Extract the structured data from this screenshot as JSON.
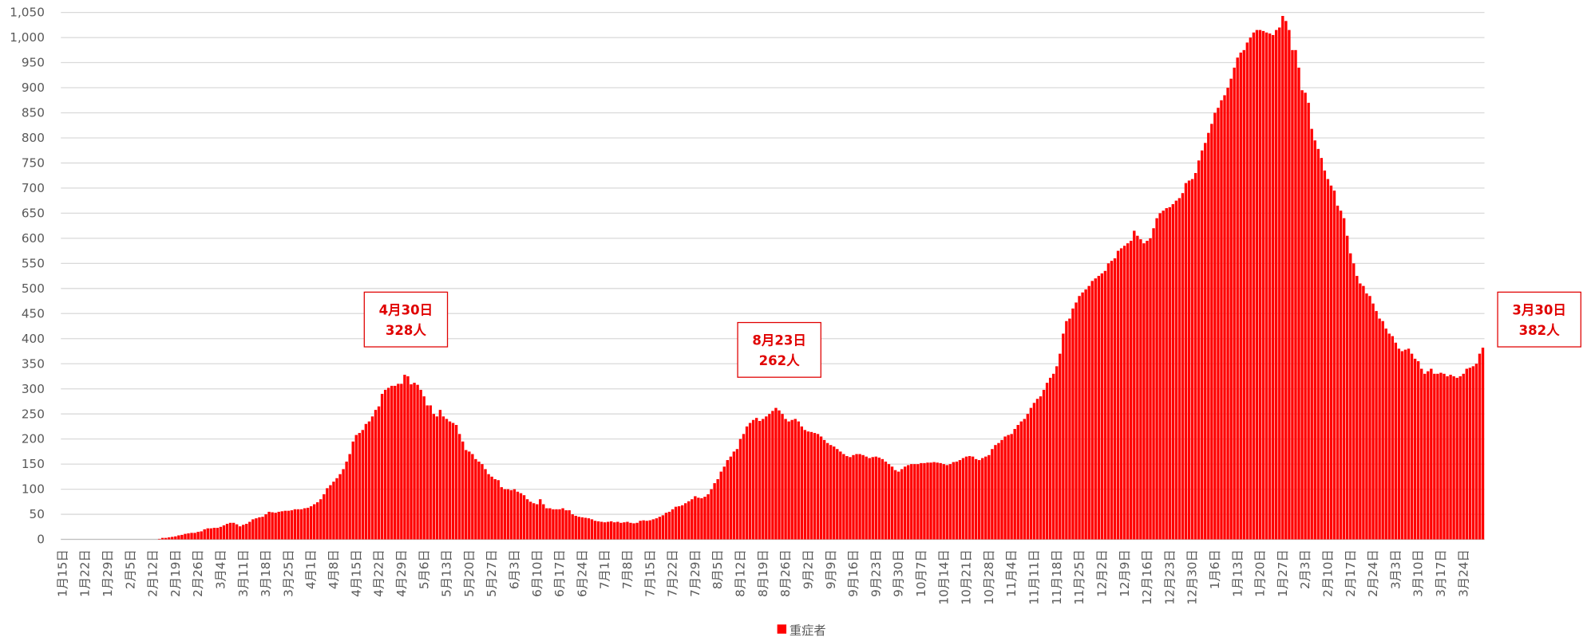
{
  "chart_data": {
    "type": "bar",
    "categories": [
      "1月15日",
      null,
      null,
      null,
      null,
      null,
      null,
      "1月22日",
      null,
      null,
      null,
      null,
      null,
      null,
      "1月29日",
      null,
      null,
      null,
      null,
      null,
      null,
      "2月5日",
      null,
      null,
      null,
      null,
      null,
      null,
      "2月12日",
      null,
      null,
      null,
      null,
      null,
      null,
      "2月19日",
      null,
      null,
      null,
      null,
      null,
      null,
      "2月26日",
      null,
      null,
      null,
      null,
      null,
      null,
      "3月4日",
      null,
      null,
      null,
      null,
      null,
      null,
      "3月11日",
      null,
      null,
      null,
      null,
      null,
      null,
      "3月18日",
      null,
      null,
      null,
      null,
      null,
      null,
      "3月25日",
      null,
      null,
      null,
      null,
      null,
      null,
      "4月1日",
      null,
      null,
      null,
      null,
      null,
      null,
      "4月8日",
      null,
      null,
      null,
      null,
      null,
      null,
      "4月15日",
      null,
      null,
      null,
      null,
      null,
      null,
      "4月22日",
      null,
      null,
      null,
      null,
      null,
      null,
      "4月29日",
      null,
      null,
      null,
      null,
      null,
      null,
      "5月6日",
      null,
      null,
      null,
      null,
      null,
      null,
      "5月13日",
      null,
      null,
      null,
      null,
      null,
      null,
      "5月20日",
      null,
      null,
      null,
      null,
      null,
      null,
      "5月27日",
      null,
      null,
      null,
      null,
      null,
      null,
      "6月3日",
      null,
      null,
      null,
      null,
      null,
      null,
      "6月10日",
      null,
      null,
      null,
      null,
      null,
      null,
      "6月17日",
      null,
      null,
      null,
      null,
      null,
      null,
      "6月24日",
      null,
      null,
      null,
      null,
      null,
      null,
      "7月1日",
      null,
      null,
      null,
      null,
      null,
      null,
      "7月8日",
      null,
      null,
      null,
      null,
      null,
      null,
      "7月15日",
      null,
      null,
      null,
      null,
      null,
      null,
      "7月22日",
      null,
      null,
      null,
      null,
      null,
      null,
      "7月29日",
      null,
      null,
      null,
      null,
      null,
      null,
      "8月5日",
      null,
      null,
      null,
      null,
      null,
      null,
      "8月12日",
      null,
      null,
      null,
      null,
      null,
      null,
      "8月19日",
      null,
      null,
      null,
      null,
      null,
      null,
      "8月26日",
      null,
      null,
      null,
      null,
      null,
      null,
      "9月2日",
      null,
      null,
      null,
      null,
      null,
      null,
      "9月9日",
      null,
      null,
      null,
      null,
      null,
      null,
      "9月16日",
      null,
      null,
      null,
      null,
      null,
      null,
      "9月23日",
      null,
      null,
      null,
      null,
      null,
      null,
      "9月30日",
      null,
      null,
      null,
      null,
      null,
      null,
      "10月7日",
      null,
      null,
      null,
      null,
      null,
      null,
      "10月14日",
      null,
      null,
      null,
      null,
      null,
      null,
      "10月21日",
      null,
      null,
      null,
      null,
      null,
      null,
      "10月28日",
      null,
      null,
      null,
      null,
      null,
      null,
      "11月4日",
      null,
      null,
      null,
      null,
      null,
      null,
      "11月11日",
      null,
      null,
      null,
      null,
      null,
      null,
      "11月18日",
      null,
      null,
      null,
      null,
      null,
      null,
      "11月25日",
      null,
      null,
      null,
      null,
      null,
      null,
      "12月2日",
      null,
      null,
      null,
      null,
      null,
      null,
      "12月9日",
      null,
      null,
      null,
      null,
      null,
      null,
      "12月16日",
      null,
      null,
      null,
      null,
      null,
      null,
      "12月23日",
      null,
      null,
      null,
      null,
      null,
      null,
      "12月30日",
      null,
      null,
      null,
      null,
      null,
      null,
      "1月6日",
      null,
      null,
      null,
      null,
      null,
      null,
      "1月13日",
      null,
      null,
      null,
      null,
      null,
      null,
      "1月20日",
      null,
      null,
      null,
      null,
      null,
      null,
      "1月27日",
      null,
      null,
      null,
      null,
      null,
      null,
      "2月3日",
      null,
      null,
      null,
      null,
      null,
      null,
      "2月10日",
      null,
      null,
      null,
      null,
      null,
      null,
      "2月17日",
      null,
      null,
      null,
      null,
      null,
      null,
      "2月24日",
      null,
      null,
      null,
      null,
      null,
      null,
      "3月3日",
      null,
      null,
      null,
      null,
      null,
      null,
      "3月10日",
      null,
      null,
      null,
      null,
      null,
      null,
      "3月17日",
      null,
      null,
      null,
      null,
      null,
      null,
      "3月24日",
      null,
      null,
      null,
      null,
      null,
      null
    ],
    "series": [
      {
        "name": "重症者",
        "color": "#ff0000",
        "values": [
          0,
          0,
          0,
          0,
          0,
          0,
          0,
          0,
          0,
          0,
          0,
          0,
          0,
          0,
          0,
          0,
          0,
          0,
          0,
          0,
          0,
          0,
          0,
          0,
          0,
          0,
          0,
          0,
          0,
          0,
          1,
          3,
          3,
          4,
          5,
          6,
          8,
          9,
          11,
          12,
          13,
          13,
          15,
          16,
          20,
          22,
          22,
          23,
          23,
          25,
          28,
          31,
          33,
          33,
          30,
          26,
          29,
          31,
          35,
          40,
          42,
          44,
          45,
          50,
          55,
          54,
          53,
          55,
          56,
          57,
          57,
          58,
          60,
          60,
          60,
          62,
          63,
          66,
          70,
          74,
          80,
          90,
          102,
          108,
          115,
          122,
          130,
          140,
          155,
          170,
          195,
          208,
          212,
          218,
          230,
          235,
          245,
          258,
          265,
          290,
          298,
          302,
          306,
          306,
          310,
          310,
          328,
          325,
          309,
          312,
          308,
          298,
          285,
          267,
          267,
          250,
          245,
          258,
          245,
          240,
          235,
          232,
          228,
          210,
          195,
          178,
          175,
          170,
          160,
          155,
          150,
          140,
          130,
          125,
          120,
          118,
          104,
          100,
          100,
          98,
          100,
          95,
          92,
          88,
          80,
          75,
          72,
          70,
          80,
          70,
          62,
          62,
          60,
          60,
          60,
          62,
          58,
          58,
          50,
          47,
          45,
          44,
          43,
          42,
          40,
          37,
          36,
          35,
          34,
          35,
          36,
          34,
          35,
          33,
          34,
          35,
          33,
          32,
          33,
          37,
          38,
          37,
          38,
          40,
          42,
          45,
          48,
          53,
          55,
          60,
          65,
          66,
          68,
          72,
          76,
          80,
          86,
          83,
          82,
          85,
          90,
          100,
          112,
          120,
          135,
          145,
          158,
          165,
          175,
          180,
          200,
          210,
          225,
          232,
          238,
          242,
          236,
          240,
          245,
          250,
          256,
          262,
          257,
          250,
          240,
          235,
          238,
          240,
          235,
          225,
          218,
          215,
          214,
          212,
          210,
          205,
          198,
          192,
          188,
          185,
          180,
          175,
          170,
          166,
          164,
          168,
          170,
          170,
          168,
          165,
          162,
          164,
          165,
          163,
          160,
          155,
          150,
          145,
          138,
          135,
          140,
          145,
          148,
          150,
          150,
          150,
          152,
          152,
          153,
          153,
          154,
          153,
          152,
          150,
          148,
          150,
          154,
          155,
          158,
          162,
          165,
          166,
          165,
          160,
          158,
          162,
          165,
          168,
          180,
          188,
          192,
          198,
          205,
          208,
          210,
          220,
          228,
          235,
          240,
          250,
          262,
          272,
          280,
          285,
          298,
          312,
          322,
          330,
          345,
          370,
          410,
          435,
          440,
          460,
          472,
          485,
          492,
          498,
          505,
          515,
          520,
          525,
          530,
          535,
          550,
          555,
          560,
          575,
          580,
          585,
          590,
          595,
          615,
          605,
          598,
          590,
          595,
          600,
          620,
          640,
          650,
          655,
          660,
          662,
          668,
          675,
          680,
          690,
          710,
          715,
          718,
          730,
          755,
          775,
          790,
          810,
          828,
          850,
          860,
          875,
          885,
          900,
          918,
          940,
          960,
          970,
          975,
          990,
          1000,
          1010,
          1015,
          1015,
          1013,
          1010,
          1008,
          1005,
          1015,
          1020,
          1043,
          1033,
          1015,
          975,
          975,
          940,
          895,
          890,
          870,
          818,
          795,
          778,
          760,
          735,
          718,
          705,
          695,
          665,
          655,
          640,
          605,
          570,
          550,
          525,
          510,
          505,
          490,
          485,
          470,
          455,
          440,
          435,
          420,
          410,
          405,
          392,
          380,
          375,
          378,
          380,
          370,
          360,
          355,
          340,
          330,
          335,
          340,
          330,
          330,
          332,
          330,
          325,
          328,
          325,
          322,
          325,
          330,
          340,
          342,
          345,
          350,
          370,
          382
        ]
      }
    ],
    "ylim": [
      0,
      1050
    ],
    "yticks": [
      0,
      50,
      100,
      150,
      200,
      250,
      300,
      350,
      400,
      450,
      500,
      550,
      600,
      650,
      700,
      750,
      800,
      850,
      900,
      950,
      {
        "value": 1000,
        "label": "1,000"
      },
      {
        "value": 1050,
        "label": "1,050"
      }
    ],
    "grid": true,
    "legend": "bottom",
    "annotations": [
      [
        "4月30日",
        "328人"
      ],
      [
        "8月23日",
        "262人"
      ],
      [
        "3月30日",
        "382人"
      ]
    ]
  }
}
